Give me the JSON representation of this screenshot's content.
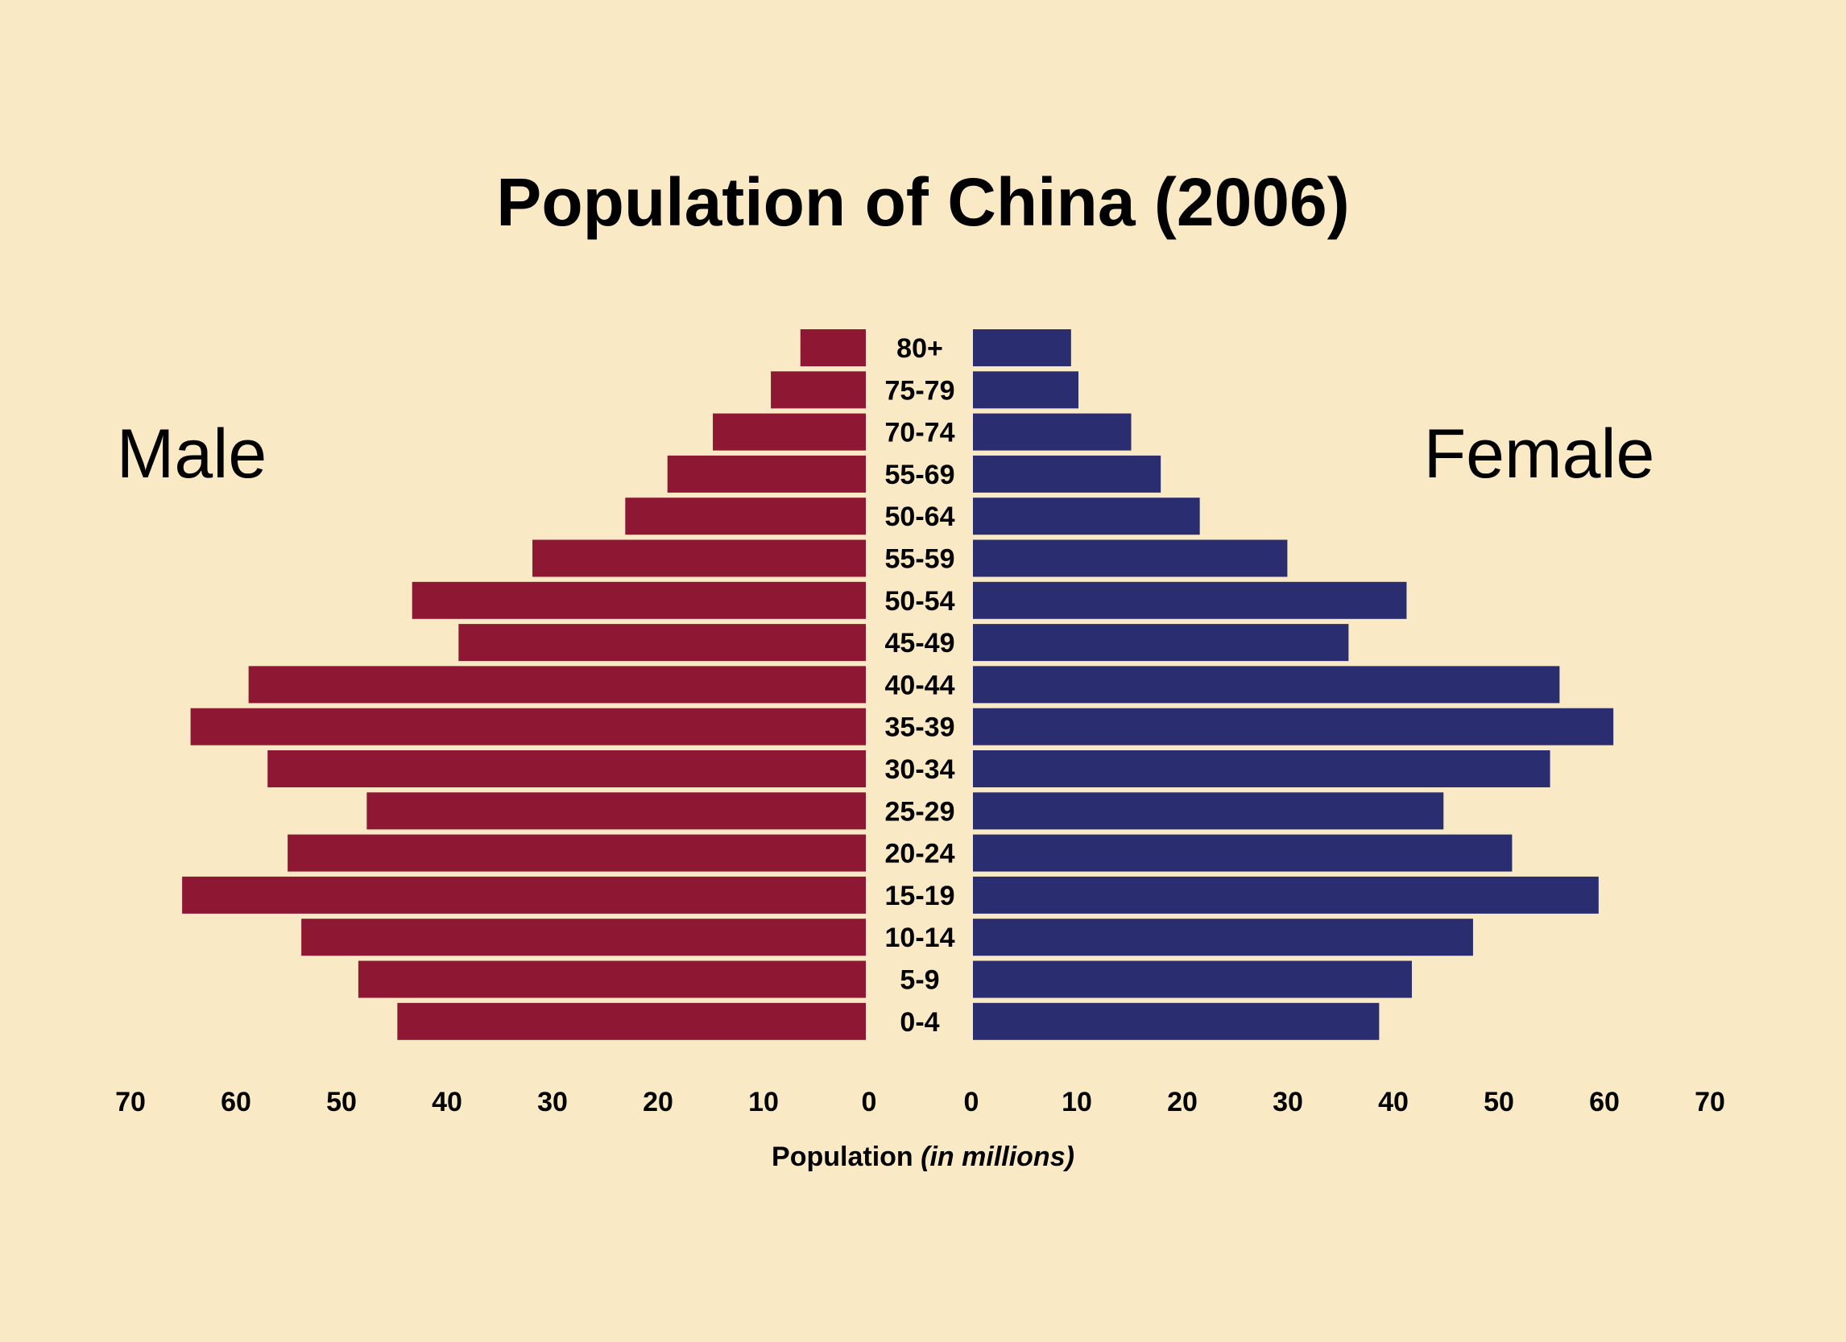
{
  "chart_data": {
    "type": "bar",
    "orientation": "horizontal",
    "layout": "population-pyramid",
    "title": "Population of China (2006)",
    "xlabel": "Population",
    "xlabel_unit": "(in millions)",
    "left_label": "Male",
    "right_label": "Female",
    "xlim": [
      0,
      70
    ],
    "ticks": [
      "70",
      "60",
      "50",
      "40",
      "30",
      "20",
      "10",
      "0",
      "0",
      "10",
      "20",
      "30",
      "40",
      "50",
      "60",
      "70"
    ],
    "categories": [
      "80+",
      "75-79",
      "70-74",
      "55-69",
      "50-64",
      "55-59",
      "50-54",
      "45-49",
      "40-44",
      "35-39",
      "30-34",
      "25-29",
      "20-24",
      "15-19",
      "10-14",
      "5-9",
      "0-4"
    ],
    "series": [
      {
        "name": "Male",
        "side": "left",
        "color": "#8e1834",
        "values": [
          6.2,
          9,
          14.5,
          18.8,
          22.8,
          31.6,
          43,
          38.6,
          58.5,
          64,
          56.7,
          47.3,
          54.8,
          64.8,
          53.5,
          48.1,
          44.4
        ]
      },
      {
        "name": "Female",
        "side": "right",
        "color": "#2a2d70",
        "values": [
          9.3,
          10,
          15,
          17.8,
          21.5,
          29.8,
          41.1,
          35.6,
          55.6,
          60.7,
          54.7,
          44.6,
          51.1,
          59.3,
          47.4,
          41.6,
          38.5
        ]
      }
    ],
    "grid": false,
    "legend": "none"
  }
}
